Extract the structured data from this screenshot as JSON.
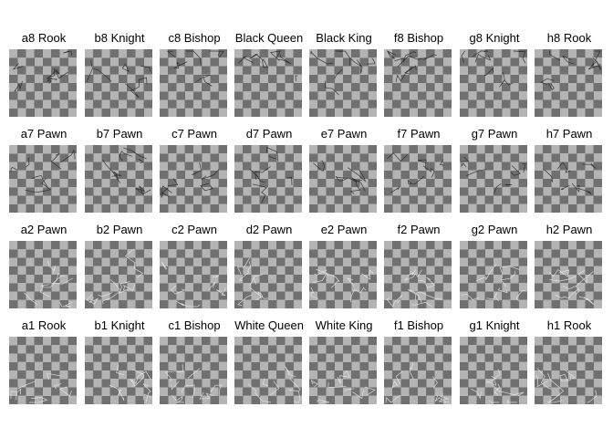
{
  "title": "",
  "rows": [
    [
      "a8 Rook",
      "b8 Knight",
      "c8 Bishop",
      "Black Queen",
      "Black King",
      "f8 Bishop",
      "g8 Knight",
      "h8 Rook"
    ],
    [
      "a7 Pawn",
      "b7 Pawn",
      "c7 Pawn",
      "d7 Pawn",
      "e7 Pawn",
      "f7 Pawn",
      "g7 Pawn",
      "h7 Pawn"
    ],
    [
      "a2 Pawn",
      "b2 Pawn",
      "c2 Pawn",
      "d2 Pawn",
      "e2 Pawn",
      "f2 Pawn",
      "g2 Pawn",
      "h2 Pawn"
    ],
    [
      "a1 Rook",
      "b1 Knight",
      "c1 Bishop",
      "White Queen",
      "White King",
      "f1 Bishop",
      "g1 Knight",
      "h1 Rook"
    ]
  ],
  "colors": {
    "checker_light": "#b4b4b4",
    "checker_dark": "#707070",
    "sketch_black": "#222222",
    "sketch_white": "#ececec"
  }
}
